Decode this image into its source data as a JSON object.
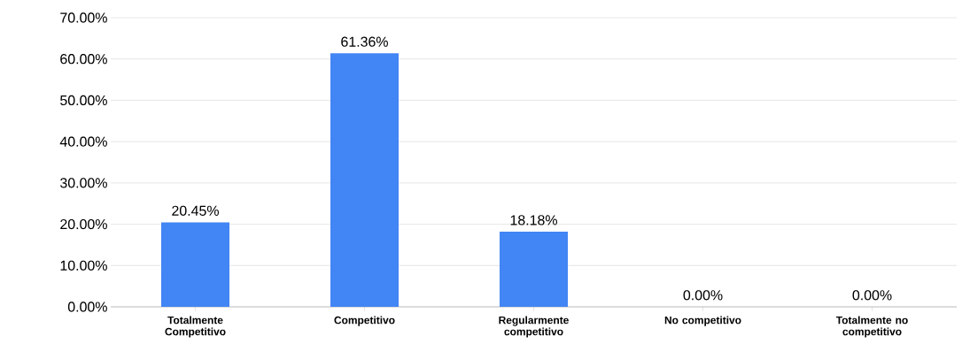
{
  "chart_data": {
    "type": "bar",
    "categories": [
      "Totalmente Competitivo",
      "Competitivo",
      "Regularmente competitivo",
      "No competitivo",
      "Totalmente no competitivo"
    ],
    "values": [
      20.45,
      61.36,
      18.18,
      0,
      0
    ],
    "value_labels": [
      "20.45%",
      "61.36%",
      "18.18%",
      "0.00%",
      "0.00%"
    ],
    "color": "#4285f4",
    "ylim": [
      0,
      70
    ],
    "yticks": [
      {
        "value": 0,
        "label": "0.00%"
      },
      {
        "value": 10,
        "label": "10.00%"
      },
      {
        "value": 20,
        "label": "20.00%"
      },
      {
        "value": 30,
        "label": "30.00%"
      },
      {
        "value": 40,
        "label": "40.00%"
      },
      {
        "value": 50,
        "label": "50.00%"
      },
      {
        "value": 60,
        "label": "60.00%"
      },
      {
        "value": 70,
        "label": "70.00%"
      }
    ],
    "grid": "y"
  }
}
